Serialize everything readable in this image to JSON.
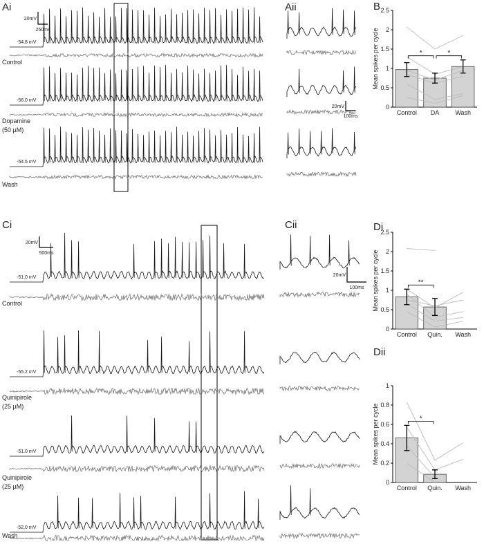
{
  "figure_a": {
    "label_i": "Ai",
    "label_ii": "Aii",
    "scale_i": [
      "20mV",
      "250ms"
    ],
    "scale_ii": [
      "20mV",
      "100ms"
    ],
    "rows": [
      {
        "condition": [
          "Control"
        ],
        "potential": "-54.8 mV"
      },
      {
        "condition": [
          "Dopamine",
          "(50 µM)"
        ],
        "potential": "-56.0 mV"
      },
      {
        "condition": [
          "Wash"
        ],
        "potential": "-54.5 mV"
      }
    ]
  },
  "figure_c": {
    "label_i": "Ci",
    "label_ii": "Cii",
    "scale_i": [
      "20mV",
      "500ms"
    ],
    "scale_ii": [
      "20mV",
      "100ms"
    ],
    "rows": [
      {
        "condition": [
          "Control"
        ],
        "potential": "-51.0 mV"
      },
      {
        "condition": [
          "Quinipirole",
          "(25 µM)"
        ],
        "potential": "-55.2 mV"
      },
      {
        "condition": [
          "Quinipirole",
          "(25 µM)"
        ],
        "potential": "-51.0 mV"
      },
      {
        "condition": [
          "Wash"
        ],
        "potential": "-52.0 mV"
      }
    ]
  },
  "chart_data": [
    {
      "type": "bar",
      "label": "B",
      "ylabel": "Mean spikes per cycle",
      "categories": [
        "Control",
        "DA",
        "Wash"
      ],
      "values": [
        0.97,
        0.75,
        1.05
      ],
      "errors": [
        0.18,
        0.13,
        0.17
      ],
      "color": "#d3d3d3",
      "individuals": [
        [
          2.07,
          1.5,
          1.85
        ],
        [
          1.3,
          0.85,
          1.05
        ],
        [
          0.95,
          0.7,
          0.95
        ],
        [
          0.85,
          0.62,
          0.8
        ],
        [
          0.6,
          0.2,
          0.35
        ],
        [
          0.25,
          0.1,
          0.3
        ]
      ],
      "ylim": [
        0,
        2.5
      ],
      "yticks": [
        0,
        0.5,
        1,
        1.5,
        2,
        2.5
      ],
      "significance": [
        {
          "from": 0,
          "to": 1,
          "label": "*"
        },
        {
          "from": 1,
          "to": 2,
          "label": "*"
        }
      ]
    },
    {
      "type": "bar",
      "label": "Di",
      "ylabel": "Mean spikes per cycle",
      "categories": [
        "Control",
        "Quin.",
        "Wash"
      ],
      "values": [
        0.83,
        0.57,
        null
      ],
      "errors": [
        0.2,
        0.22,
        null
      ],
      "color": "#d3d3d3",
      "individuals": [
        [
          2.08,
          2.03,
          null
        ],
        [
          1.03,
          0.55,
          0.95
        ],
        [
          0.9,
          0.3,
          0.45
        ],
        [
          0.75,
          0.6,
          0.75
        ],
        [
          0.65,
          0.2,
          0.3
        ],
        [
          0.45,
          0.05,
          0.2
        ]
      ],
      "ylim": [
        0,
        2.5
      ],
      "yticks": [
        0,
        0.5,
        1,
        1.5,
        2,
        2.5
      ],
      "significance": [
        {
          "from": 0,
          "to": 1,
          "label": "**"
        }
      ]
    },
    {
      "type": "bar",
      "label": "Dii",
      "ylabel": "Mean spikes per cycle",
      "categories": [
        "Control",
        "Quin.",
        "Wash"
      ],
      "values": [
        0.46,
        0.085,
        null
      ],
      "errors": [
        0.13,
        0.045,
        null
      ],
      "color": "#d3d3d3",
      "individuals": [
        [
          0.83,
          0.23,
          0.41
        ],
        [
          0.57,
          0.13,
          0.24
        ],
        [
          0.38,
          0.05,
          null
        ],
        [
          0.2,
          0.0,
          null
        ]
      ],
      "ylim": [
        0,
        1
      ],
      "yticks": [
        0,
        0.2,
        0.4,
        0.6,
        0.8,
        1
      ],
      "significance": [
        {
          "from": 0,
          "to": 1,
          "label": "*"
        }
      ]
    }
  ]
}
